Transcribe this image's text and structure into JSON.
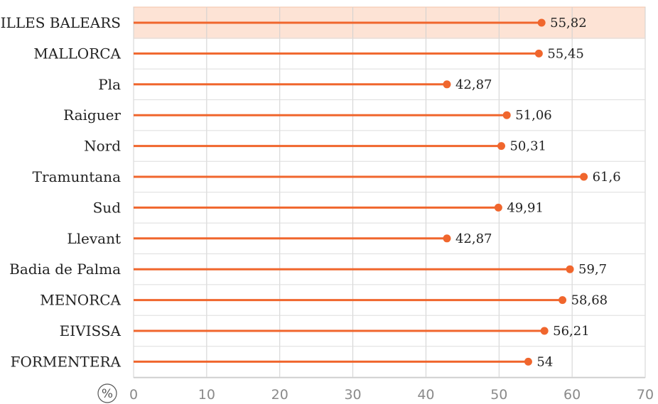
{
  "chart_data": {
    "type": "bar",
    "orientation": "horizontal",
    "style": "lollipop",
    "categories": [
      "ILLES BALEARS",
      "MALLORCA",
      "Pla",
      "Raiguer",
      "Nord",
      "Tramuntana",
      "Sud",
      "Llevant",
      "Badia de Palma",
      "MENORCA",
      "EIVISSA",
      "FORMENTERA"
    ],
    "values": [
      55.82,
      55.45,
      42.87,
      51.06,
      50.31,
      61.6,
      49.91,
      42.87,
      59.7,
      58.68,
      56.21,
      54
    ],
    "value_labels": [
      "55,82",
      "55,45",
      "42,87",
      "51,06",
      "50,31",
      "61,6",
      "49,91",
      "42,87",
      "59,7",
      "58,68",
      "56,21",
      "54"
    ],
    "highlighted_category": "ILLES BALEARS",
    "xlim": [
      0,
      70
    ],
    "xticks": [
      "0",
      "10",
      "20",
      "30",
      "40",
      "50",
      "60",
      "70"
    ],
    "unit_label": "%",
    "grid": true,
    "colors": {
      "series": "#f0662d",
      "highlight_band": "#fde3d5",
      "grid": "#d0d0d0"
    }
  }
}
